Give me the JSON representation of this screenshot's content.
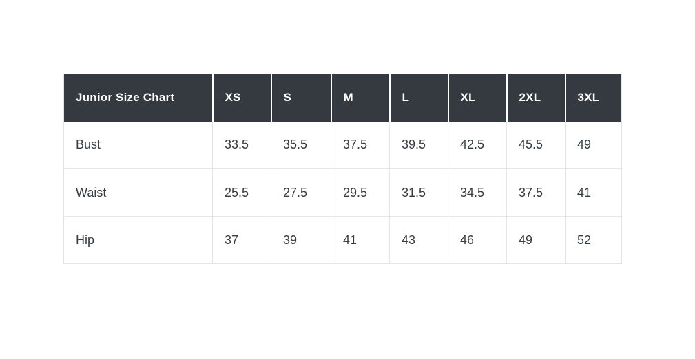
{
  "chart_data": {
    "type": "table",
    "title": "Junior Size Chart",
    "columns": [
      "XS",
      "S",
      "M",
      "L",
      "XL",
      "2XL",
      "3XL"
    ],
    "rows": [
      {
        "label": "Bust",
        "values": [
          "33.5",
          "35.5",
          "37.5",
          "39.5",
          "42.5",
          "45.5",
          "49"
        ]
      },
      {
        "label": "Waist",
        "values": [
          "25.5",
          "27.5",
          "29.5",
          "31.5",
          "34.5",
          "37.5",
          "41"
        ]
      },
      {
        "label": "Hip",
        "values": [
          "37",
          "39",
          "41",
          "43",
          "46",
          "49",
          "52"
        ]
      }
    ]
  },
  "colors": {
    "page_bg": "#ffffff",
    "header_bg": "#343a40",
    "header_text": "#ffffff",
    "body_text": "#363c43",
    "border": "#e3e5e7",
    "header_divider": "#ffffff"
  }
}
